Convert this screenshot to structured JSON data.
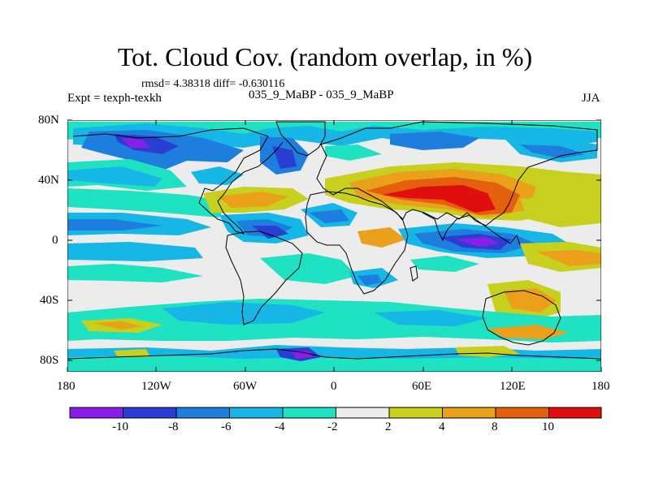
{
  "title": "Tot. Cloud Cov. (random overlap, in %)",
  "stats": "rmsd= 4.38318 diff= -0.630116",
  "experiment": "Expt = texph-texkh",
  "case_name": "035_9_MaBP - 035_9_MaBP",
  "season": "JJA",
  "axes": {
    "lat_ticks": [
      "80N",
      "40N",
      "0",
      "40S",
      "80S"
    ],
    "lon_ticks": [
      "180",
      "120W",
      "60W",
      "0",
      "60E",
      "120E",
      "180"
    ]
  },
  "colorbar": {
    "labels": [
      "-10",
      "-8",
      "-6",
      "-4",
      "-2",
      "2",
      "4",
      "8",
      "10"
    ],
    "colors": [
      "#8a1ee6",
      "#2a3ed2",
      "#1e7ede",
      "#16b6e6",
      "#1ee2c2",
      "#ececec",
      "#c8d01e",
      "#eaa01a",
      "#e4600c",
      "#e00e0e"
    ]
  }
}
